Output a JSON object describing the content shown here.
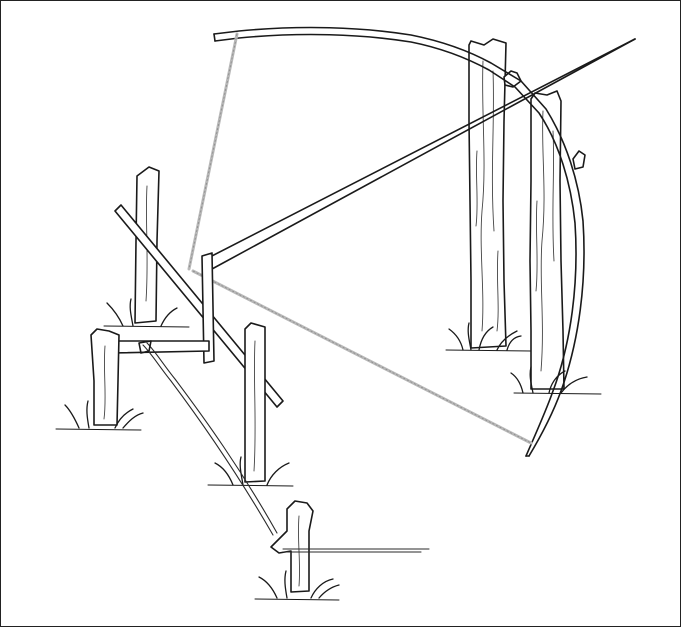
{
  "illustration": {
    "subject": "",
    "colors": {
      "ink": "#1a1a1a",
      "cord": "#b8b8b8",
      "background": "#ffffff"
    }
  }
}
